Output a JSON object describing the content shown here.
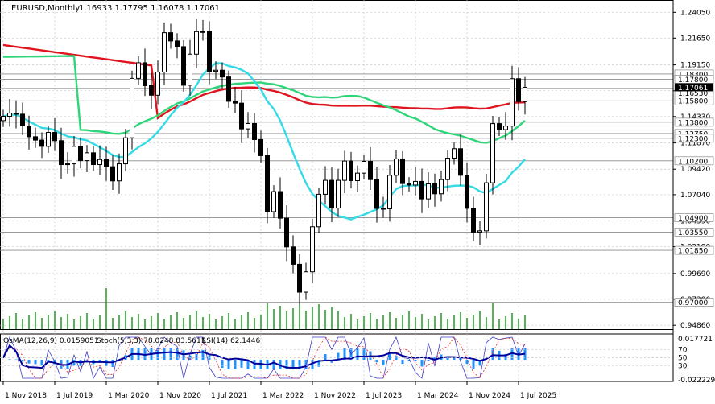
{
  "header": {
    "symbol": "EURUSD,Monthly",
    "ohlc": "1.16933 1.17795 1.16078 1.17061"
  },
  "indicator_header": {
    "osma": "OsMA(12,26,9) 0.0159051",
    "stoch": "Stoch(5,3,3) 78.0248 83.5611",
    "rsi": "RSI(14) 62.1446"
  },
  "colors": {
    "ma_red": "#e0141e",
    "ma_green": "#2ed67a",
    "ma_cyan": "#34dbe6",
    "volume": "#1e9e1e",
    "osma": "#1e90ff",
    "rsi": "#00009a",
    "stoch_main": "#3c3cc8",
    "stoch_signal": "#e02424",
    "grid": "#c8c8c8",
    "level_line": "#8c8c8c",
    "candle": "#000000"
  },
  "chart_data": {
    "type": "candlestick",
    "timeframe": "Monthly",
    "ylim": [
      0.945,
      1.252
    ],
    "price_axis_labels": [
      "1.24050",
      "1.21650",
      "1.19150",
      "1.16740",
      "1.14330",
      "1.11870",
      "1.09420",
      "1.07040",
      "1.04590",
      "1.02190",
      "0.99690",
      "0.97290",
      "0.94860"
    ],
    "price_axis_values": [
      1.2405,
      1.2165,
      1.1915,
      1.1674,
      1.1433,
      1.1187,
      1.0942,
      1.0704,
      1.0459,
      1.0219,
      0.9969,
      0.9729,
      0.9486
    ],
    "level_labels": [
      "1.18300",
      "1.17800",
      "1.16960",
      "1.16530",
      "1.15800",
      "1.13800",
      "1.12750",
      "1.12300",
      "1.10200",
      "1.04900",
      "1.03550",
      "1.01850",
      "0.97000"
    ],
    "level_values": [
      1.183,
      1.178,
      1.1696,
      1.1653,
      1.158,
      1.138,
      1.1275,
      1.123,
      1.102,
      1.049,
      1.0355,
      1.0185,
      0.97
    ],
    "current_price_label": "1.17061",
    "current_price": 1.17061,
    "time_labels": [
      "1 Nov 2018",
      "1 Jul 2019",
      "1 Mar 2020",
      "1 Nov 2020",
      "1 Jul 2021",
      "1 Mar 2022",
      "1 Nov 2022",
      "1 Jul 2023",
      "1 Mar 2024",
      "1 Nov 2024",
      "1 Jul 2025"
    ],
    "time_label_month_index": [
      0,
      8,
      16,
      24,
      32,
      40,
      48,
      56,
      64,
      72,
      80
    ],
    "closes": [
      1.1435,
      1.1465,
      1.1455,
      1.1345,
      1.1245,
      1.1213,
      1.1155,
      1.1285,
      1.1208,
      1.0985,
      1.0992,
      1.1155,
      1.1022,
      1.1095,
      1.0985,
      1.1032,
      1.0965,
      1.0833,
      1.0992,
      1.1235,
      1.1789,
      1.1935,
      1.1721,
      1.1632,
      1.1848,
      1.2215,
      1.2138,
      1.2085,
      1.1725,
      1.2015,
      1.2225,
      1.2225,
      1.1855,
      1.1865,
      1.1802,
      1.1575,
      1.1558,
      1.1318,
      1.1368,
      1.1218,
      1.1068,
      1.0546,
      1.0733,
      1.0485,
      1.0217,
      1.0055,
      0.9795,
      0.9985,
      1.0405,
      1.0708,
      1.0838,
      1.0579,
      1.0838,
      1.1018,
      1.0835,
      1.0905,
      1.1015,
      1.0845,
      1.0576,
      1.0573,
      1.0885,
      1.1038,
      1.0808,
      1.0794,
      1.0828,
      1.0665,
      1.0805,
      1.0713,
      1.0845,
      1.1045,
      1.1133,
      1.0885,
      1.0577,
      1.0355,
      1.0367,
      1.0815,
      1.1367,
      1.1311,
      1.1344,
      1.1786,
      1.1572,
      1.1706
    ],
    "ma_red_last": 1.1565,
    "ma_green_last": 1.1395,
    "ma_cyan_last": 1.1035,
    "sub_window": {
      "level_labels": [
        "0.017721",
        "70",
        "50",
        "30",
        "-0.022229"
      ],
      "osma_last": 0.0159051,
      "stoch_main_last": 78.0248,
      "stoch_signal_last": 83.5611,
      "rsi_last": 62.1446
    }
  }
}
